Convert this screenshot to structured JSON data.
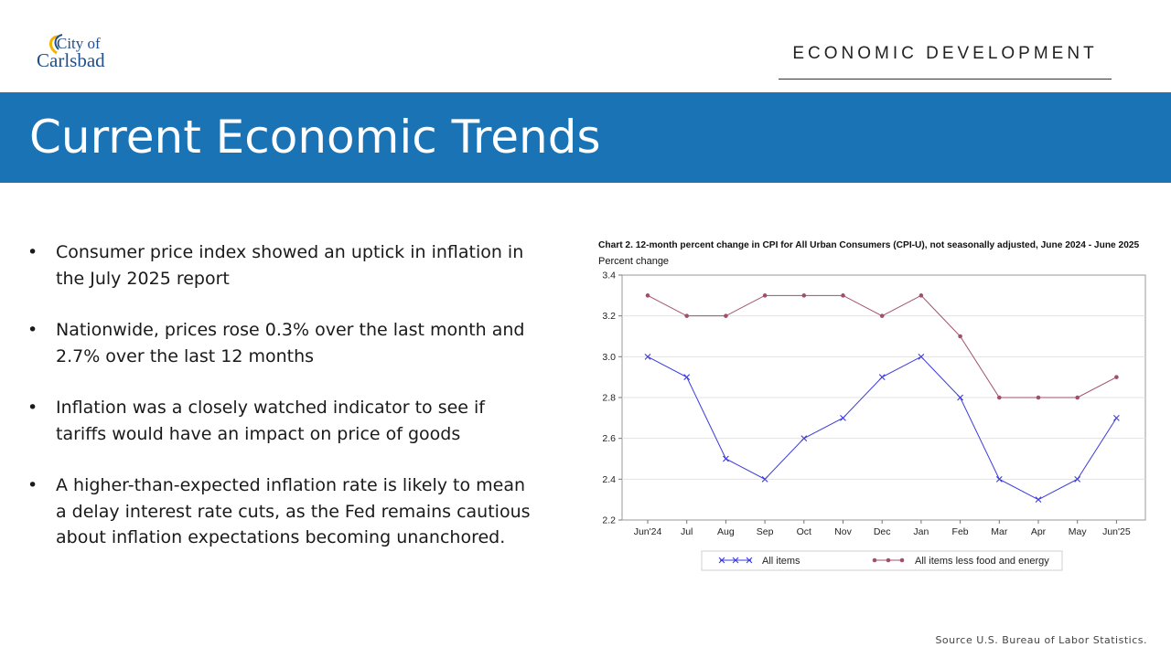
{
  "logo": {
    "line1": "City of",
    "line2": "Carlsbad"
  },
  "header": {
    "section": "ECONOMIC DEVELOPMENT"
  },
  "banner": {
    "title": "Current Economic Trends"
  },
  "bullets": [
    "Consumer price index showed an uptick in inflation in the July 2025 report",
    "Nationwide, prices rose 0.3% over the last month and 2.7% over the last 12 months",
    "Inflation was a closely watched indicator to see if tariffs would have an impact on price of goods",
    "A higher-than-expected inflation rate is likely to mean a delay interest rate cuts, as the Fed remains cautious about inflation expectations becoming unanchored."
  ],
  "bullet_symbol": "•",
  "colors": {
    "banner": "#1a73b4",
    "logo": "#1f4e8c",
    "logo_accent": "#f2b400",
    "series_all": "#3a3ae0",
    "series_core": "#a0506e"
  },
  "chart_data": {
    "type": "line",
    "title": "Chart 2. 12-month percent change in CPI for All Urban Consumers (CPI-U), not seasonally adjusted, June 2024 - June 2025",
    "ylabel": "Percent change",
    "categories": [
      "Jun'24",
      "Jul",
      "Aug",
      "Sep",
      "Oct",
      "Nov",
      "Dec",
      "Jan",
      "Feb",
      "Mar",
      "Apr",
      "May",
      "Jun'25"
    ],
    "ylim": [
      2.2,
      3.4
    ],
    "yticks": [
      "3.4",
      "3.2",
      "3.0",
      "2.8",
      "2.6",
      "2.4",
      "2.2"
    ],
    "grid": true,
    "legend_position": "bottom",
    "series": [
      {
        "name": "All items",
        "color": "#3a3ae0",
        "marker": "x",
        "values": [
          3.0,
          2.9,
          2.5,
          2.4,
          2.6,
          2.7,
          2.9,
          3.0,
          2.8,
          2.4,
          2.3,
          2.4,
          2.7
        ]
      },
      {
        "name": "All items less food and energy",
        "color": "#a0506e",
        "marker": "dot",
        "values": [
          3.3,
          3.2,
          3.2,
          3.3,
          3.3,
          3.3,
          3.2,
          3.3,
          3.1,
          2.8,
          2.8,
          2.8,
          2.9
        ]
      }
    ]
  },
  "source": "Source  U.S. Bureau of Labor Statistics."
}
